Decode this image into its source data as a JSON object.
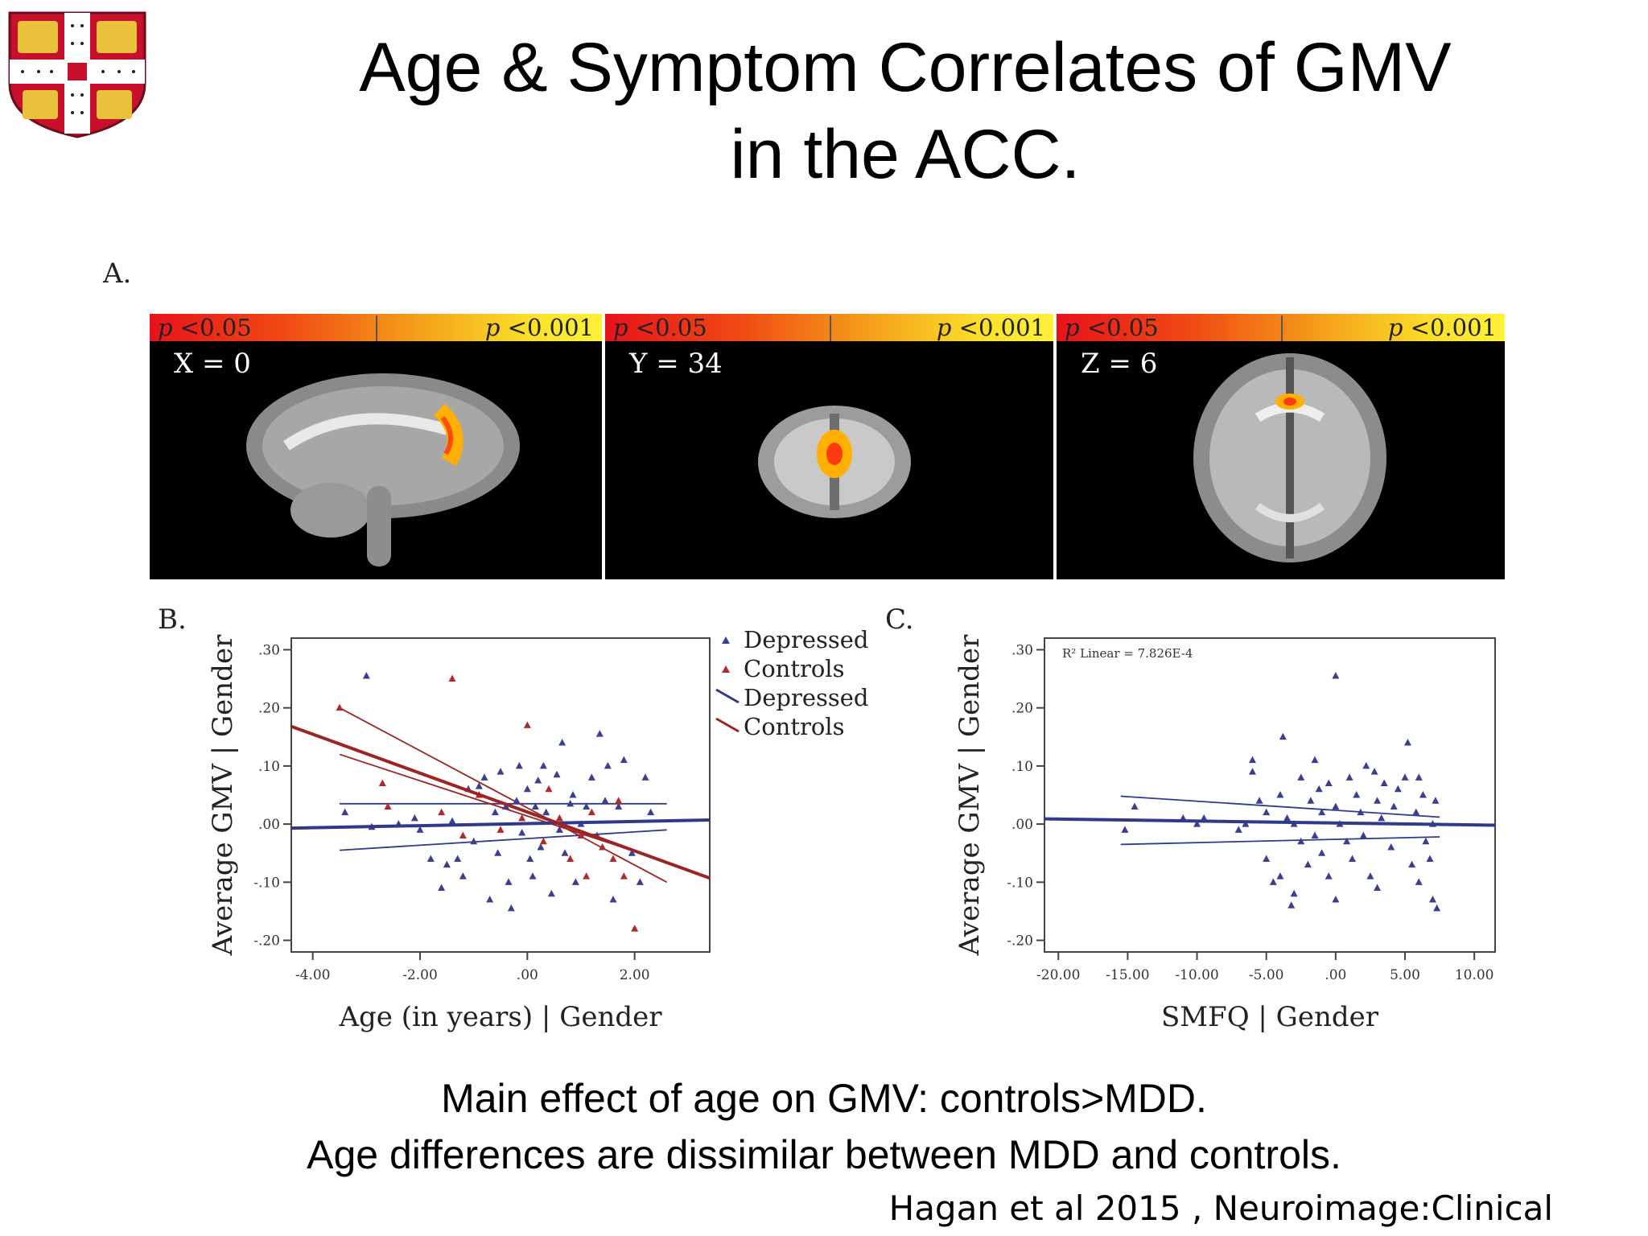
{
  "slide": {
    "title_line1": "Age & Symptom Correlates of GMV",
    "title_line2": "in the ACC.",
    "footer_line1": "Main effect of age on GMV: controls>MDD.",
    "footer_line2": "Age differences are dissimilar between MDD and  controls.",
    "citation": "Hagan et al 2015 , Neuroimage:Clinical"
  },
  "panel_a": {
    "label": "A.",
    "colorbar_low": "<0.05",
    "colorbar_high": "<0.001",
    "colorbar_p": "p",
    "slices": [
      {
        "coord": "X = 0"
      },
      {
        "coord": "Y = 34"
      },
      {
        "coord": "Z = 6"
      }
    ]
  },
  "colors": {
    "depressed": "#3b3f8f",
    "controls": "#b02a2a",
    "depressed_line": "#2e3a8c",
    "controls_line": "#9e2424"
  },
  "chart_data": [
    {
      "panel": "B.",
      "type": "scatter",
      "xlabel": "Age (in years) | Gender",
      "ylabel": "Average GMV | Gender",
      "xlim": [
        -4.4,
        3.4
      ],
      "ylim": [
        -0.22,
        0.32
      ],
      "x_ticks": [
        -4,
        -2,
        0,
        2
      ],
      "x_tick_labels": [
        "-4.00",
        "-2.00",
        ".00",
        "2.00"
      ],
      "y_ticks": [
        -0.2,
        -0.1,
        0,
        0.1,
        0.2,
        0.3
      ],
      "y_tick_labels": [
        "-.20",
        "-.10",
        ".00",
        ".10",
        ".20",
        ".30"
      ],
      "legend_position": "right",
      "legend": [
        "Depressed",
        "Controls",
        "Depressed",
        "Controls"
      ],
      "series": [
        {
          "name": "Depressed",
          "points": [
            [
              -3.0,
              0.255
            ],
            [
              -3.4,
              0.02
            ],
            [
              -2.9,
              -0.005
            ],
            [
              -2.4,
              0.0
            ],
            [
              -2.1,
              0.01
            ],
            [
              -2.0,
              -0.01
            ],
            [
              -1.8,
              -0.06
            ],
            [
              -1.6,
              -0.11
            ],
            [
              -1.5,
              -0.07
            ],
            [
              -1.4,
              0.005
            ],
            [
              -1.3,
              -0.06
            ],
            [
              -1.2,
              -0.09
            ],
            [
              -1.1,
              0.06
            ],
            [
              -1.0,
              -0.03
            ],
            [
              -0.9,
              0.065
            ],
            [
              -0.8,
              0.08
            ],
            [
              -0.7,
              -0.13
            ],
            [
              -0.6,
              0.02
            ],
            [
              -0.55,
              -0.05
            ],
            [
              -0.5,
              0.09
            ],
            [
              -0.4,
              0.03
            ],
            [
              -0.35,
              -0.1
            ],
            [
              -0.3,
              -0.145
            ],
            [
              -0.2,
              0.04
            ],
            [
              -0.15,
              0.1
            ],
            [
              -0.1,
              -0.015
            ],
            [
              0.0,
              0.06
            ],
            [
              0.05,
              -0.06
            ],
            [
              0.1,
              -0.09
            ],
            [
              0.15,
              0.03
            ],
            [
              0.2,
              0.075
            ],
            [
              0.25,
              -0.04
            ],
            [
              0.3,
              0.1
            ],
            [
              0.35,
              0.02
            ],
            [
              0.45,
              -0.12
            ],
            [
              0.55,
              0.085
            ],
            [
              0.6,
              -0.01
            ],
            [
              0.65,
              0.14
            ],
            [
              0.7,
              -0.05
            ],
            [
              0.8,
              0.035
            ],
            [
              0.85,
              0.05
            ],
            [
              0.9,
              -0.1
            ],
            [
              1.0,
              0.0
            ],
            [
              1.1,
              0.03
            ],
            [
              1.2,
              0.08
            ],
            [
              1.3,
              -0.02
            ],
            [
              1.35,
              0.155
            ],
            [
              1.45,
              0.04
            ],
            [
              1.5,
              0.1
            ],
            [
              1.6,
              -0.13
            ],
            [
              1.7,
              0.03
            ],
            [
              1.8,
              0.11
            ],
            [
              1.95,
              -0.05
            ],
            [
              2.1,
              -0.1
            ],
            [
              2.2,
              0.08
            ],
            [
              2.3,
              0.02
            ]
          ]
        },
        {
          "name": "Controls",
          "points": [
            [
              -3.5,
              0.2
            ],
            [
              -1.4,
              0.25
            ],
            [
              -2.7,
              0.07
            ],
            [
              -2.6,
              0.03
            ],
            [
              -1.6,
              0.02
            ],
            [
              -1.2,
              -0.02
            ],
            [
              -0.9,
              0.05
            ],
            [
              -0.5,
              -0.01
            ],
            [
              -0.1,
              0.01
            ],
            [
              0.0,
              0.17
            ],
            [
              0.3,
              -0.03
            ],
            [
              0.6,
              0.01
            ],
            [
              0.8,
              -0.06
            ],
            [
              1.0,
              -0.02
            ],
            [
              1.2,
              0.02
            ],
            [
              1.4,
              -0.04
            ],
            [
              1.6,
              -0.06
            ],
            [
              1.8,
              -0.09
            ],
            [
              2.0,
              -0.18
            ],
            [
              1.7,
              0.04
            ],
            [
              0.4,
              0.06
            ],
            [
              1.1,
              -0.09
            ]
          ]
        }
      ],
      "fit_lines": [
        {
          "name": "Depressed",
          "x": [
            -4.4,
            3.4
          ],
          "y": [
            -0.007,
            0.007
          ]
        },
        {
          "name": "Controls",
          "x": [
            -4.4,
            3.4
          ],
          "y": [
            0.168,
            -0.093
          ]
        }
      ],
      "ci_lines": [
        {
          "name": "Depressed",
          "x": [
            -3.5,
            2.6
          ],
          "y_upper": [
            0.035,
            0.035
          ],
          "y_lower": [
            -0.045,
            -0.01
          ]
        },
        {
          "name": "Controls",
          "x": [
            -3.5,
            2.6
          ],
          "y_upper": [
            0.2,
            -0.1
          ],
          "y_lower": [
            0.12,
            -0.065
          ]
        }
      ]
    },
    {
      "panel": "C.",
      "type": "scatter",
      "xlabel": "SMFQ | Gender",
      "ylabel": "Average GMV | Gender",
      "annotation": "R² Linear = 7.826E-4",
      "xlim": [
        -21,
        11.5
      ],
      "ylim": [
        -0.22,
        0.32
      ],
      "x_ticks": [
        -20,
        -15,
        -10,
        -5,
        0,
        5,
        10
      ],
      "x_tick_labels": [
        "-20.00",
        "-15.00",
        "-10.00",
        "-5.00",
        ".00",
        "5.00",
        "10.00"
      ],
      "y_ticks": [
        -0.2,
        -0.1,
        0,
        0.1,
        0.2,
        0.3
      ],
      "y_tick_labels": [
        "-.20",
        "-.10",
        ".00",
        ".10",
        ".20",
        ".30"
      ],
      "series": [
        {
          "name": "Depressed",
          "points": [
            [
              -15.2,
              -0.01
            ],
            [
              -14.5,
              0.03
            ],
            [
              -11.0,
              0.01
            ],
            [
              -10.0,
              0.0
            ],
            [
              -9.5,
              0.01
            ],
            [
              -7.0,
              -0.01
            ],
            [
              -6.5,
              0.0
            ],
            [
              -6.0,
              0.11
            ],
            [
              -6.0,
              0.09
            ],
            [
              -5.5,
              0.04
            ],
            [
              -5.0,
              0.02
            ],
            [
              -5.0,
              -0.06
            ],
            [
              -4.5,
              -0.1
            ],
            [
              -4.0,
              0.05
            ],
            [
              -4.0,
              -0.09
            ],
            [
              -3.8,
              0.15
            ],
            [
              -3.5,
              0.01
            ],
            [
              -3.2,
              -0.14
            ],
            [
              -3.0,
              -0.12
            ],
            [
              -3.0,
              0.0
            ],
            [
              -2.5,
              0.08
            ],
            [
              -2.5,
              -0.03
            ],
            [
              -2.0,
              -0.07
            ],
            [
              -1.8,
              0.04
            ],
            [
              -1.5,
              0.11
            ],
            [
              -1.5,
              -0.02
            ],
            [
              -1.2,
              0.06
            ],
            [
              -1.0,
              -0.05
            ],
            [
              -1.0,
              0.02
            ],
            [
              -0.5,
              0.07
            ],
            [
              -0.5,
              -0.09
            ],
            [
              0.0,
              0.255
            ],
            [
              0.0,
              -0.13
            ],
            [
              0.0,
              0.03
            ],
            [
              0.3,
              0.0
            ],
            [
              0.8,
              -0.03
            ],
            [
              1.0,
              0.08
            ],
            [
              1.2,
              -0.06
            ],
            [
              1.5,
              0.05
            ],
            [
              1.8,
              0.02
            ],
            [
              2.0,
              -0.02
            ],
            [
              2.2,
              0.1
            ],
            [
              2.5,
              -0.09
            ],
            [
              2.8,
              0.09
            ],
            [
              3.0,
              0.04
            ],
            [
              3.0,
              -0.11
            ],
            [
              3.3,
              0.01
            ],
            [
              3.5,
              0.07
            ],
            [
              4.0,
              -0.04
            ],
            [
              4.2,
              0.03
            ],
            [
              4.5,
              0.06
            ],
            [
              5.0,
              0.08
            ],
            [
              5.2,
              0.14
            ],
            [
              5.5,
              -0.07
            ],
            [
              5.8,
              0.02
            ],
            [
              6.0,
              0.08
            ],
            [
              6.0,
              -0.1
            ],
            [
              6.3,
              0.05
            ],
            [
              6.5,
              -0.03
            ],
            [
              6.8,
              -0.06
            ],
            [
              7.0,
              0.0
            ],
            [
              7.0,
              -0.13
            ],
            [
              7.2,
              0.04
            ],
            [
              7.3,
              -0.145
            ]
          ]
        }
      ],
      "fit_lines": [
        {
          "name": "Depressed",
          "x": [
            -21,
            11.5
          ],
          "y": [
            0.009,
            -0.002
          ]
        }
      ],
      "ci_lines": [
        {
          "name": "Depressed",
          "x": [
            -15.5,
            7.5
          ],
          "y_upper": [
            0.048,
            0.012
          ],
          "y_lower": [
            -0.035,
            -0.022
          ]
        }
      ]
    }
  ]
}
